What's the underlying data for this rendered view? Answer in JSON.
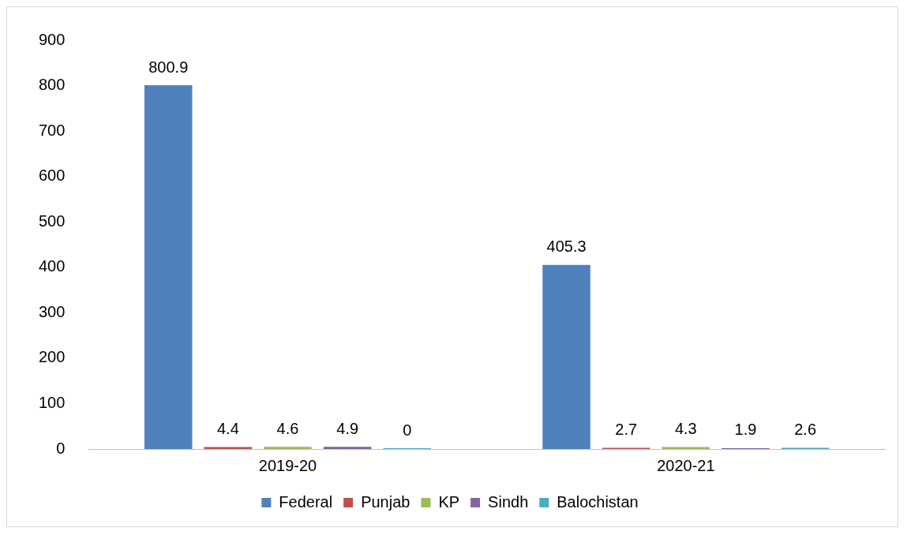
{
  "chart_data": {
    "type": "bar",
    "categories": [
      "2019-20",
      "2020-21"
    ],
    "series": [
      {
        "name": "Federal",
        "color": "#4f81bd",
        "values": [
          800.9,
          405.3
        ]
      },
      {
        "name": "Punjab",
        "color": "#c0504d",
        "values": [
          4.4,
          2.7
        ]
      },
      {
        "name": "KP",
        "color": "#9bbb59",
        "values": [
          4.6,
          4.3
        ]
      },
      {
        "name": "Sindh",
        "color": "#8064a2",
        "values": [
          4.9,
          1.9
        ]
      },
      {
        "name": "Balochistan",
        "color": "#4bacc6",
        "values": [
          0,
          2.6
        ]
      }
    ],
    "ylim": [
      0,
      900
    ],
    "yticks": [
      0,
      100,
      200,
      300,
      400,
      500,
      600,
      700,
      800,
      900
    ],
    "grid": false,
    "legend": "bottom",
    "data_labels": true
  }
}
